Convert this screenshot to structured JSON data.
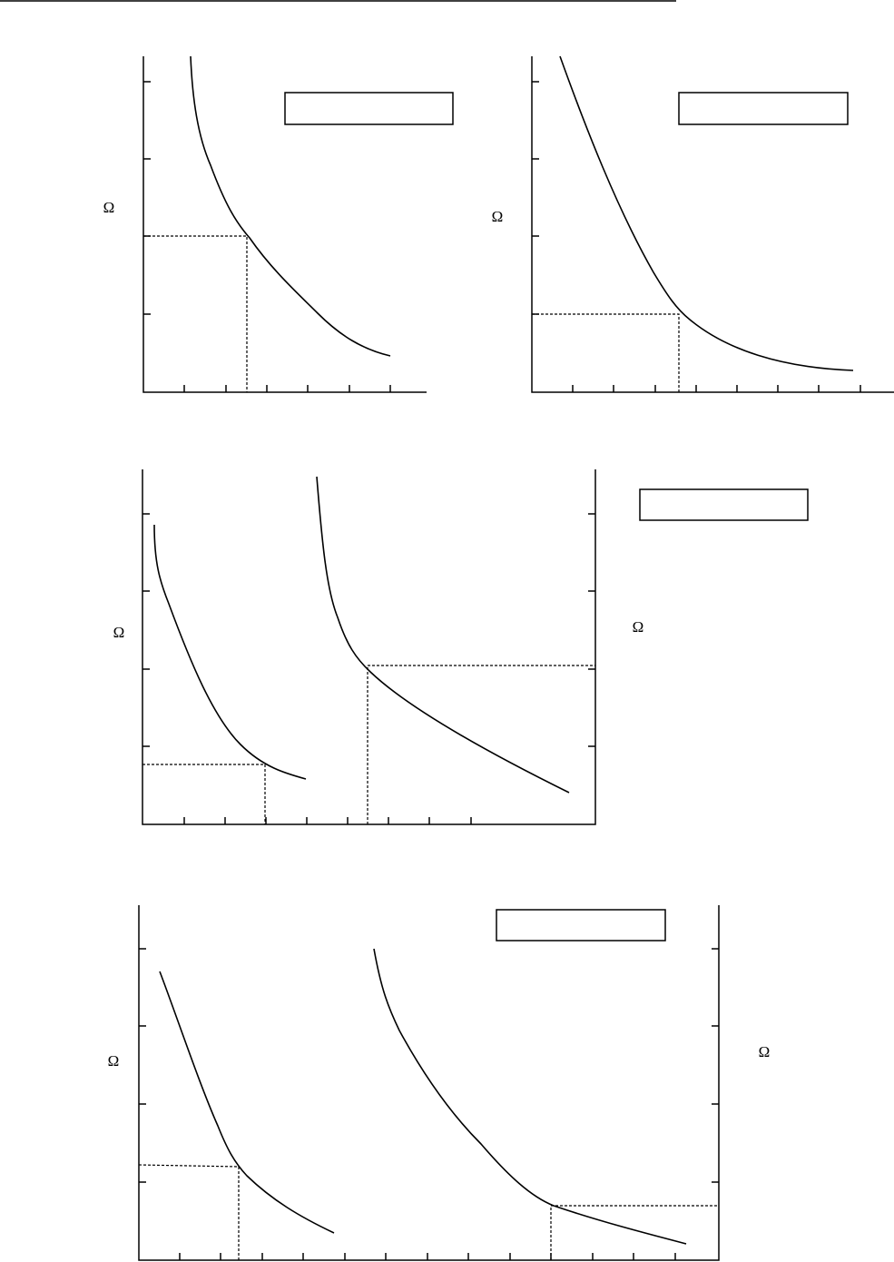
{
  "panels": [
    {
      "y_label": "Ω"
    },
    {
      "y_label": "Ω"
    },
    {
      "y_label": "Ω",
      "y2_label": "Ω"
    },
    {
      "y_label": "Ω",
      "y2_label": "Ω"
    }
  ]
}
